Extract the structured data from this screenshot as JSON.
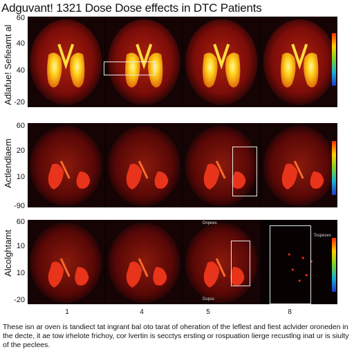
{
  "title": "Adguvant! 1321 Dose Dose effects in DTC Patients",
  "rows": [
    {
      "label": "Adlafue! Sefieamt al",
      "ticks": [
        "60",
        "40",
        "40",
        "-20"
      ]
    },
    {
      "label": "Actlendlaem",
      "ticks": [
        "60",
        "20",
        "10",
        "-90"
      ]
    },
    {
      "label": "Alcolghtamt",
      "ticks": [
        "60",
        "10",
        "10",
        "-20"
      ]
    }
  ],
  "column_labels": [
    "1",
    "4",
    "5",
    "8"
  ],
  "panel_notes": {
    "row3_top": "Dnpees",
    "row3_bottom": "Dupss",
    "row3_side": "Tospeses"
  },
  "caption": "These isn ar oven is tandiect tat ingrant bal oto tarat of oheration of the leflest and fiest aclvider oroneden in the decte, it ae tow irhelote frichoy, cor lvertin is secctys ersting or rospuation lierge recustlng inat ur is siulty of the peclees."
}
